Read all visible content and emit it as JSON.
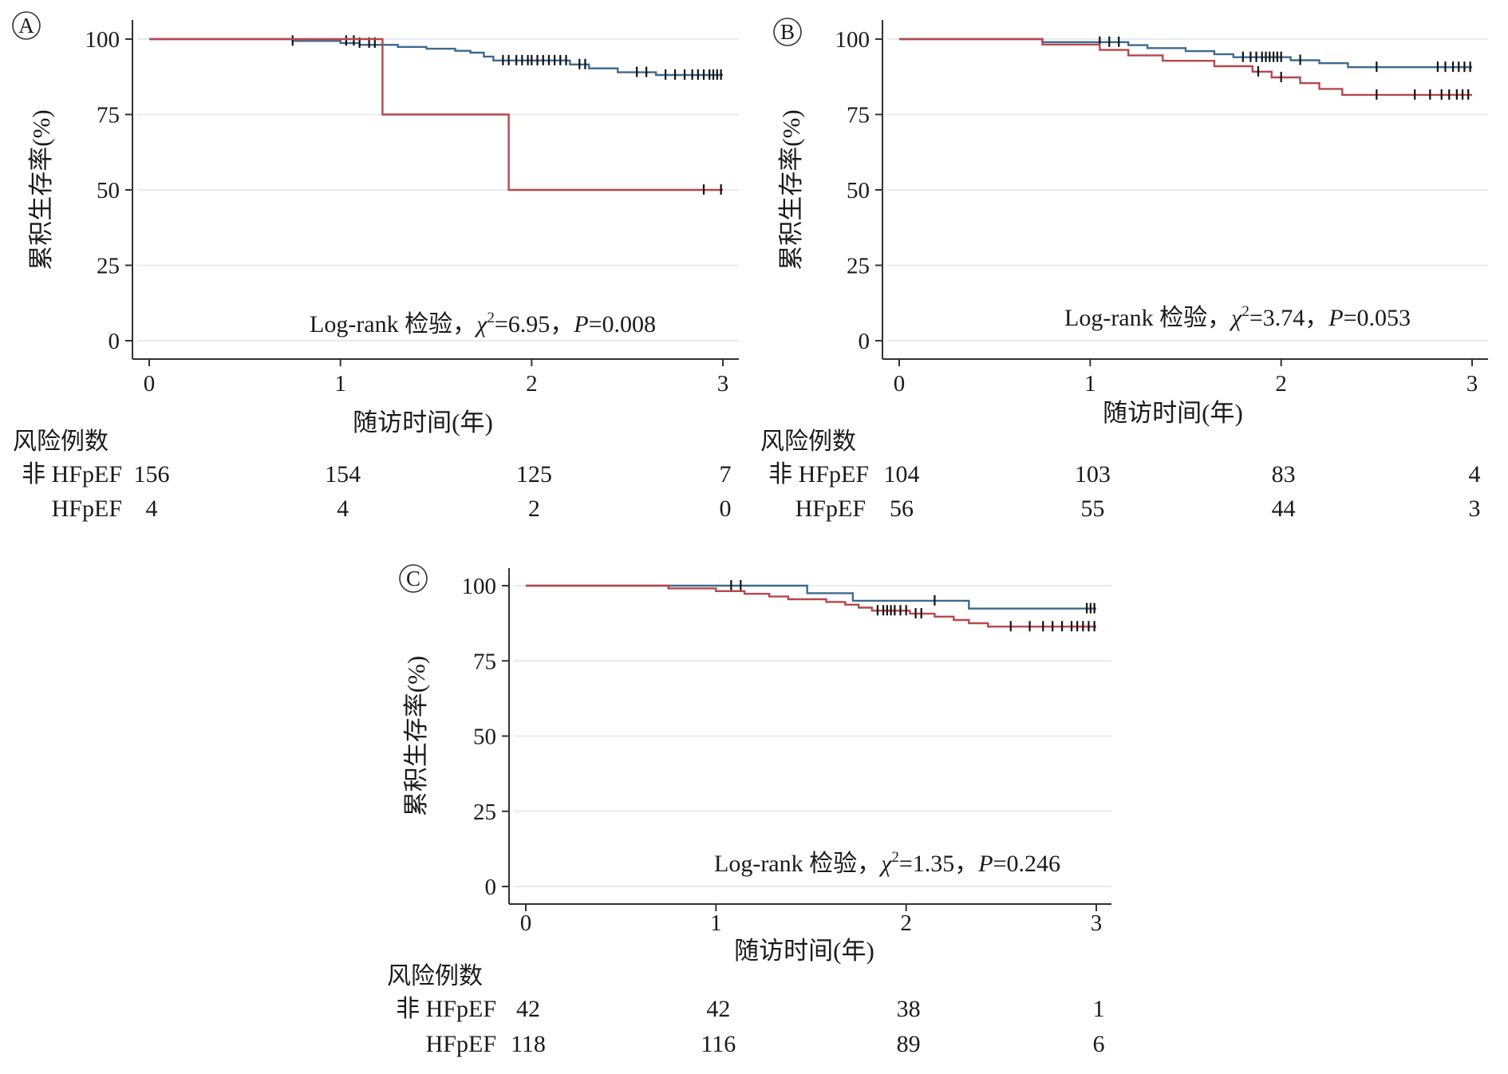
{
  "chart_data": [
    {
      "panel": "A",
      "type": "line",
      "ylabel": "累积生存率(%)",
      "xlabel": "随访时间(年)",
      "xlim": [
        0,
        3
      ],
      "ylim": [
        0,
        100
      ],
      "xticks": [
        "0",
        "1",
        "2",
        "3"
      ],
      "yticks": [
        "0",
        "25",
        "50",
        "75",
        "100"
      ],
      "grid": "horizontal",
      "annotation": {
        "pre": "Log-rank 检验，",
        "chi": "χ",
        "sup": "2",
        "mid": "=6.95，",
        "p": "P",
        "post": "=0.008"
      },
      "series": [
        {
          "group": "非HFpEF",
          "color": "#3d6a8e",
          "points": [
            [
              0,
              100
            ],
            [
              0.75,
              100
            ],
            [
              0.75,
              99.4
            ],
            [
              1.0,
              99.4
            ],
            [
              1.0,
              98.7
            ],
            [
              1.1,
              98.7
            ],
            [
              1.1,
              98.1
            ],
            [
              1.3,
              98.1
            ],
            [
              1.3,
              97.4
            ],
            [
              1.45,
              97.4
            ],
            [
              1.45,
              96.8
            ],
            [
              1.6,
              96.8
            ],
            [
              1.6,
              96.1
            ],
            [
              1.68,
              96.1
            ],
            [
              1.68,
              95.5
            ],
            [
              1.75,
              95.5
            ],
            [
              1.75,
              94.2
            ],
            [
              1.8,
              94.2
            ],
            [
              1.8,
              92.9
            ],
            [
              2.2,
              92.9
            ],
            [
              2.2,
              91.6
            ],
            [
              2.3,
              91.6
            ],
            [
              2.3,
              90.3
            ],
            [
              2.45,
              90.3
            ],
            [
              2.45,
              89.0
            ],
            [
              2.65,
              89.0
            ],
            [
              2.65,
              88.1
            ],
            [
              3.0,
              88.1
            ]
          ],
          "censors": [
            [
              0.75,
              99.4
            ],
            [
              1.03,
              99.4
            ],
            [
              1.07,
              99.4
            ],
            [
              1.1,
              98.7
            ],
            [
              1.15,
              98.7
            ],
            [
              1.18,
              98.7
            ],
            [
              1.85,
              92.9
            ],
            [
              1.88,
              92.9
            ],
            [
              1.92,
              92.9
            ],
            [
              1.95,
              92.9
            ],
            [
              1.98,
              92.9
            ],
            [
              2.0,
              92.9
            ],
            [
              2.03,
              92.9
            ],
            [
              2.06,
              92.9
            ],
            [
              2.09,
              92.9
            ],
            [
              2.12,
              92.9
            ],
            [
              2.15,
              92.9
            ],
            [
              2.18,
              92.9
            ],
            [
              2.25,
              91.6
            ],
            [
              2.28,
              91.6
            ],
            [
              2.55,
              89.0
            ],
            [
              2.6,
              89.0
            ],
            [
              2.7,
              88.1
            ],
            [
              2.75,
              88.1
            ],
            [
              2.8,
              88.1
            ],
            [
              2.84,
              88.1
            ],
            [
              2.87,
              88.1
            ],
            [
              2.9,
              88.1
            ],
            [
              2.93,
              88.1
            ],
            [
              2.95,
              88.1
            ],
            [
              2.97,
              88.1
            ],
            [
              2.99,
              88.1
            ]
          ]
        },
        {
          "group": "HFpEF",
          "color": "#b8474a",
          "points": [
            [
              0,
              100
            ],
            [
              1.22,
              100
            ],
            [
              1.22,
              75
            ],
            [
              1.88,
              75
            ],
            [
              1.88,
              50
            ],
            [
              3.0,
              50
            ]
          ],
          "censors": [
            [
              2.9,
              50
            ],
            [
              2.99,
              50
            ]
          ]
        }
      ],
      "risk_table": {
        "title": "风险例数",
        "times": [
          "0",
          "1",
          "2",
          "3"
        ],
        "rows": [
          {
            "label": "非 HFpEF",
            "values": [
              "156",
              "154",
              "125",
              "7"
            ]
          },
          {
            "label": "HFpEF",
            "values": [
              "4",
              "4",
              "2",
              "0"
            ]
          }
        ]
      }
    },
    {
      "panel": "B",
      "type": "line",
      "ylabel": "累积生存率(%)",
      "xlabel": "随访时间(年)",
      "xlim": [
        0,
        3
      ],
      "ylim": [
        0,
        100
      ],
      "xticks": [
        "0",
        "1",
        "2",
        "3"
      ],
      "yticks": [
        "0",
        "25",
        "50",
        "75",
        "100"
      ],
      "grid": "horizontal",
      "annotation": {
        "pre": "Log-rank 检验，",
        "chi": "χ",
        "sup": "2",
        "mid": "=3.74，",
        "p": "P",
        "post": "=0.053"
      },
      "series": [
        {
          "group": "非HFpEF",
          "color": "#3d6a8e",
          "points": [
            [
              0,
              100
            ],
            [
              0.75,
              100
            ],
            [
              0.75,
              99.0
            ],
            [
              1.2,
              99.0
            ],
            [
              1.2,
              98.0
            ],
            [
              1.3,
              98.0
            ],
            [
              1.3,
              97.0
            ],
            [
              1.5,
              97.0
            ],
            [
              1.5,
              96.0
            ],
            [
              1.65,
              96.0
            ],
            [
              1.65,
              95.0
            ],
            [
              1.75,
              95.0
            ],
            [
              1.75,
              94.0
            ],
            [
              2.05,
              94.0
            ],
            [
              2.05,
              93.0
            ],
            [
              2.2,
              93.0
            ],
            [
              2.2,
              92.0
            ],
            [
              2.35,
              92.0
            ],
            [
              2.35,
              90.7
            ],
            [
              3.0,
              90.7
            ]
          ],
          "censors": [
            [
              1.05,
              99.0
            ],
            [
              1.1,
              99.0
            ],
            [
              1.15,
              99.0
            ],
            [
              1.8,
              94.0
            ],
            [
              1.84,
              94.0
            ],
            [
              1.87,
              94.0
            ],
            [
              1.9,
              94.0
            ],
            [
              1.92,
              94.0
            ],
            [
              1.94,
              94.0
            ],
            [
              1.96,
              94.0
            ],
            [
              1.98,
              94.0
            ],
            [
              2.0,
              94.0
            ],
            [
              2.1,
              93.0
            ],
            [
              2.5,
              90.7
            ],
            [
              2.82,
              90.7
            ],
            [
              2.86,
              90.7
            ],
            [
              2.9,
              90.7
            ],
            [
              2.93,
              90.7
            ],
            [
              2.96,
              90.7
            ],
            [
              2.99,
              90.7
            ]
          ]
        },
        {
          "group": "HFpEF",
          "color": "#b8474a",
          "points": [
            [
              0,
              100
            ],
            [
              0.75,
              100
            ],
            [
              0.75,
              98.2
            ],
            [
              1.05,
              98.2
            ],
            [
              1.05,
              96.4
            ],
            [
              1.2,
              96.4
            ],
            [
              1.2,
              94.6
            ],
            [
              1.38,
              94.6
            ],
            [
              1.38,
              92.8
            ],
            [
              1.65,
              92.8
            ],
            [
              1.65,
              91.0
            ],
            [
              1.85,
              91.0
            ],
            [
              1.85,
              89.2
            ],
            [
              1.95,
              89.2
            ],
            [
              1.95,
              87.3
            ],
            [
              2.1,
              87.3
            ],
            [
              2.1,
              85.4
            ],
            [
              2.2,
              85.4
            ],
            [
              2.2,
              83.5
            ],
            [
              2.32,
              83.5
            ],
            [
              2.32,
              81.5
            ],
            [
              3.0,
              81.5
            ]
          ],
          "censors": [
            [
              1.88,
              89.2
            ],
            [
              2.0,
              87.3
            ],
            [
              2.5,
              81.5
            ],
            [
              2.7,
              81.5
            ],
            [
              2.78,
              81.5
            ],
            [
              2.84,
              81.5
            ],
            [
              2.88,
              81.5
            ],
            [
              2.92,
              81.5
            ],
            [
              2.95,
              81.5
            ],
            [
              2.98,
              81.5
            ]
          ]
        }
      ],
      "risk_table": {
        "title": "风险例数",
        "times": [
          "0",
          "1",
          "2",
          "3"
        ],
        "rows": [
          {
            "label": "非 HFpEF",
            "values": [
              "104",
              "103",
              "83",
              "4"
            ]
          },
          {
            "label": "HFpEF",
            "values": [
              "56",
              "55",
              "44",
              "3"
            ]
          }
        ]
      }
    },
    {
      "panel": "C",
      "type": "line",
      "ylabel": "累积生存率(%)",
      "xlabel": "随访时间(年)",
      "xlim": [
        0,
        3
      ],
      "ylim": [
        0,
        100
      ],
      "xticks": [
        "0",
        "1",
        "2",
        "3"
      ],
      "yticks": [
        "0",
        "25",
        "50",
        "75",
        "100"
      ],
      "grid": "horizontal",
      "annotation": {
        "pre": "Log-rank 检验，",
        "chi": "χ",
        "sup": "2",
        "mid": "=1.35，",
        "p": "P",
        "post": "=0.246"
      },
      "series": [
        {
          "group": "非HFpEF",
          "color": "#3d6a8e",
          "points": [
            [
              0,
              100
            ],
            [
              1.48,
              100
            ],
            [
              1.48,
              97.5
            ],
            [
              1.72,
              97.5
            ],
            [
              1.72,
              95.0
            ],
            [
              2.33,
              95.0
            ],
            [
              2.33,
              92.4
            ],
            [
              3.0,
              92.4
            ]
          ],
          "censors": [
            [
              1.08,
              100
            ],
            [
              1.13,
              100
            ],
            [
              2.15,
              95.0
            ],
            [
              2.95,
              92.4
            ],
            [
              2.97,
              92.4
            ],
            [
              2.99,
              92.4
            ]
          ]
        },
        {
          "group": "HFpEF",
          "color": "#b8474a",
          "points": [
            [
              0,
              100
            ],
            [
              0.75,
              100
            ],
            [
              0.75,
              99.1
            ],
            [
              1.0,
              99.1
            ],
            [
              1.0,
              98.2
            ],
            [
              1.15,
              98.2
            ],
            [
              1.15,
              97.3
            ],
            [
              1.28,
              97.3
            ],
            [
              1.28,
              96.4
            ],
            [
              1.38,
              96.4
            ],
            [
              1.38,
              95.5
            ],
            [
              1.58,
              95.5
            ],
            [
              1.58,
              94.6
            ],
            [
              1.68,
              94.6
            ],
            [
              1.68,
              93.7
            ],
            [
              1.75,
              93.7
            ],
            [
              1.75,
              92.7
            ],
            [
              1.82,
              92.7
            ],
            [
              1.82,
              91.7
            ],
            [
              2.02,
              91.7
            ],
            [
              2.02,
              90.7
            ],
            [
              2.15,
              90.7
            ],
            [
              2.15,
              89.7
            ],
            [
              2.25,
              89.7
            ],
            [
              2.25,
              88.6
            ],
            [
              2.33,
              88.6
            ],
            [
              2.33,
              87.5
            ],
            [
              2.43,
              87.5
            ],
            [
              2.43,
              86.4
            ],
            [
              3.0,
              86.4
            ]
          ],
          "censors": [
            [
              1.85,
              91.7
            ],
            [
              1.88,
              91.7
            ],
            [
              1.9,
              91.7
            ],
            [
              1.92,
              91.7
            ],
            [
              1.94,
              91.7
            ],
            [
              1.97,
              91.7
            ],
            [
              2.0,
              91.7
            ],
            [
              2.05,
              90.7
            ],
            [
              2.08,
              90.7
            ],
            [
              2.55,
              86.4
            ],
            [
              2.65,
              86.4
            ],
            [
              2.72,
              86.4
            ],
            [
              2.77,
              86.4
            ],
            [
              2.82,
              86.4
            ],
            [
              2.87,
              86.4
            ],
            [
              2.9,
              86.4
            ],
            [
              2.93,
              86.4
            ],
            [
              2.96,
              86.4
            ],
            [
              2.99,
              86.4
            ]
          ]
        }
      ],
      "risk_table": {
        "title": "风险例数",
        "times": [
          "0",
          "1",
          "2",
          "3"
        ],
        "rows": [
          {
            "label": "非 HFpEF",
            "values": [
              "42",
              "42",
              "38",
              "1"
            ]
          },
          {
            "label": "HFpEF",
            "values": [
              "118",
              "116",
              "89",
              "6"
            ]
          }
        ]
      }
    }
  ]
}
